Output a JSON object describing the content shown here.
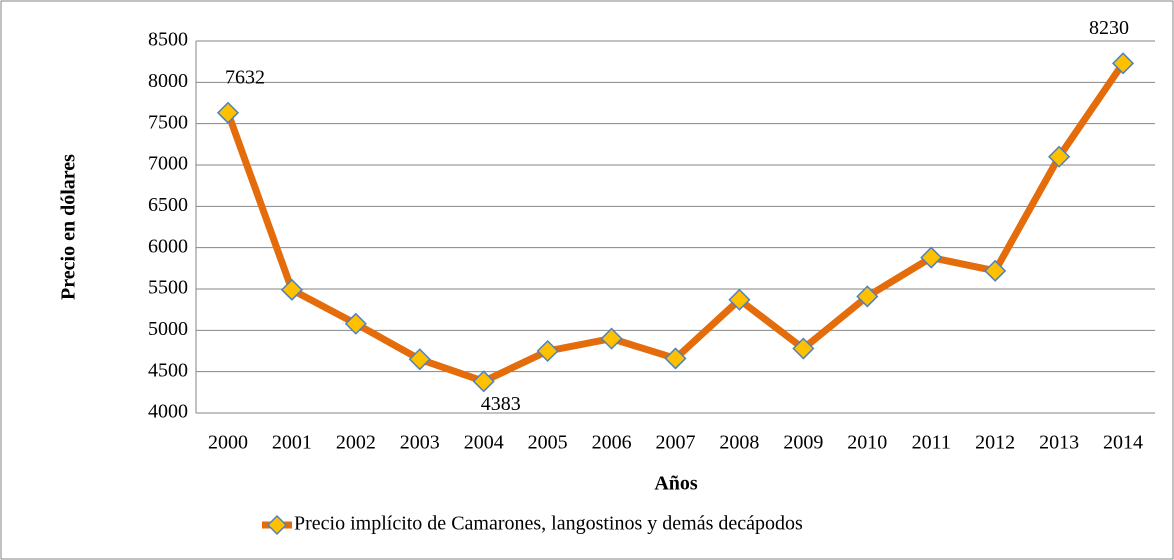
{
  "chart_data": {
    "type": "line",
    "ylabel": "Precio en dólares",
    "xlabel": "Años",
    "categories": [
      "2000",
      "2001",
      "2002",
      "2003",
      "2004",
      "2005",
      "2006",
      "2007",
      "2008",
      "2009",
      "2010",
      "2011",
      "2012",
      "2013",
      "2014"
    ],
    "series": [
      {
        "name": "Precio implícito de Camarones, langostinos y demás decápodos",
        "color": "#E46C0A",
        "marker_color": "#FFC000",
        "values": [
          7632,
          5490,
          5080,
          4650,
          4383,
          4750,
          4900,
          4660,
          5370,
          4780,
          5410,
          5880,
          5720,
          7100,
          8230
        ],
        "value_labels": [
          "7632",
          null,
          null,
          null,
          "4383",
          null,
          null,
          null,
          null,
          null,
          null,
          null,
          null,
          null,
          "8230"
        ]
      }
    ],
    "ylim": [
      4000,
      8500
    ],
    "yticks": [
      4000,
      4500,
      5000,
      5500,
      6000,
      6500,
      7000,
      7500,
      8000,
      8500
    ],
    "grid": true,
    "legend": "bottom"
  }
}
